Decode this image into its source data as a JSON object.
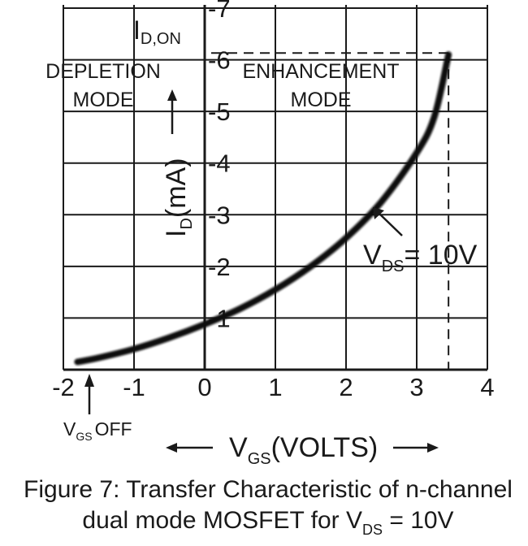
{
  "chart_data": {
    "type": "line",
    "title": "Figure 7: Transfer Characteristic of n-channel",
    "title_line2_prefix": "dual mode MOSFET for V",
    "title_line2_sub": "DS",
    "title_line2_suffix": " = 10V",
    "xlabel_main": "V",
    "xlabel_sub": "GS",
    "xlabel_suffix": "(VOLTS)",
    "ylabel_main": "I",
    "ylabel_sub": "D",
    "ylabel_suffix": "(mA)",
    "left_arrow": "⟵",
    "right_arrow": "⟶",
    "up_arrow": "⟶",
    "xlim": [
      -2,
      4
    ],
    "ylim": [
      0,
      7
    ],
    "x_ticks": [
      {
        "value": -2,
        "label": "-2"
      },
      {
        "value": -1,
        "label": "-1"
      },
      {
        "value": 0,
        "label": "0"
      },
      {
        "value": 1,
        "label": "1"
      },
      {
        "value": 2,
        "label": "2"
      },
      {
        "value": 3,
        "label": "3"
      },
      {
        "value": 4,
        "label": "4"
      }
    ],
    "y_ticks": [
      {
        "value": 1,
        "label": "-1"
      },
      {
        "value": 2,
        "label": "-2"
      },
      {
        "value": 3,
        "label": "-3"
      },
      {
        "value": 4,
        "label": "-4"
      },
      {
        "value": 5,
        "label": "-5"
      },
      {
        "value": 6,
        "label": "-6"
      },
      {
        "value": 7,
        "label": "-7"
      }
    ],
    "grid": true,
    "series": [
      {
        "name": "VDS = 10V",
        "x": [
          -1.8,
          -1.5,
          -1.0,
          -0.5,
          0.0,
          0.5,
          1.0,
          1.5,
          2.0,
          2.5,
          3.0,
          3.25,
          3.45
        ],
        "y": [
          0.15,
          0.23,
          0.4,
          0.62,
          0.88,
          1.18,
          1.55,
          2.0,
          2.55,
          3.25,
          4.2,
          4.9,
          6.1
        ]
      }
    ],
    "id_on": {
      "label_main": "I",
      "label_sub": "D,ON",
      "x": 3.45,
      "y": 6.1
    },
    "annotations": {
      "depletion": [
        "DEPLETION",
        "MODE"
      ],
      "enhancement": [
        "ENHANCEMENT",
        "MODE"
      ],
      "vds_main": "V",
      "vds_sub": "DS",
      "vds_suffix": "= 10V",
      "vgs_off_main": "V",
      "vgs_off_sub": "GS",
      "vgs_off_suffix": "OFF"
    }
  }
}
